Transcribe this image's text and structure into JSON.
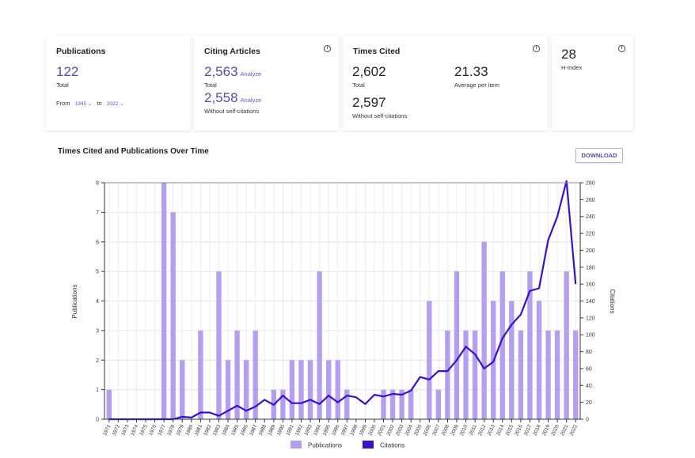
{
  "cards": {
    "publications": {
      "title": "Publications",
      "total": "122",
      "total_label": "Total",
      "from_label": "From",
      "from_value": "1945",
      "to_label": "to",
      "to_value": "2022"
    },
    "citing_articles": {
      "title": "Citing Articles",
      "total": "2,563",
      "total_label": "Total",
      "total_link": "Analyze",
      "without_self": "2,558",
      "without_self_label": "Without self-citations",
      "without_self_link": "Analyze"
    },
    "times_cited": {
      "title": "Times Cited",
      "total": "2,602",
      "total_label": "Total",
      "average": "21.33",
      "average_label": "Average per item",
      "without_self": "2,597",
      "without_self_label": "Without self-citations"
    },
    "h_index": {
      "value": "28",
      "label": "H-Index"
    }
  },
  "section": {
    "title": "Times Cited and Publications Over Time",
    "download_label": "DOWNLOAD"
  },
  "colors": {
    "publications": "#b39ef0",
    "citations": "#3a10c8",
    "accent": "#5b4aa8"
  },
  "chart_data": {
    "type": "bar",
    "title": "Times Cited and Publications Over Time",
    "xlabel": "",
    "ylabel": "Publications",
    "y2label": "Citations",
    "ylim": [
      0,
      8
    ],
    "y2lim": [
      0,
      280
    ],
    "yticks": [
      0,
      1,
      2,
      3,
      4,
      5,
      6,
      7,
      8
    ],
    "y2ticks": [
      0,
      20,
      40,
      60,
      80,
      100,
      120,
      140,
      160,
      180,
      200,
      220,
      240,
      260,
      280
    ],
    "grid": true,
    "legend_position": "bottom-center",
    "categories": [
      "1971",
      "1972",
      "1973",
      "1974",
      "1975",
      "1976",
      "1977",
      "1978",
      "1979",
      "1980",
      "1981",
      "1982",
      "1983",
      "1984",
      "1985",
      "1986",
      "1987",
      "1988",
      "1989",
      "1990",
      "1991",
      "1992",
      "1993",
      "1994",
      "1995",
      "1996",
      "1997",
      "1998",
      "1999",
      "2000",
      "2001",
      "2002",
      "2003",
      "2004",
      "2005",
      "2006",
      "2007",
      "2008",
      "2009",
      "2010",
      "2011",
      "2012",
      "2013",
      "2014",
      "2015",
      "2016",
      "2017",
      "2018",
      "2019",
      "2020",
      "2021",
      "2022"
    ],
    "series": [
      {
        "name": "Publications",
        "type": "bar",
        "axis": "left",
        "values": [
          1,
          0,
          0,
          0,
          0,
          0,
          8,
          7,
          2,
          0,
          3,
          0,
          5,
          2,
          3,
          2,
          3,
          0,
          1,
          1,
          2,
          2,
          2,
          5,
          2,
          2,
          1,
          0,
          0,
          0,
          1,
          1,
          1,
          1,
          0,
          4,
          1,
          3,
          5,
          3,
          3,
          6,
          4,
          5,
          4,
          3,
          5,
          4,
          3,
          3,
          5,
          3
        ]
      },
      {
        "name": "Citations",
        "type": "line",
        "axis": "right",
        "values": [
          0,
          0,
          0,
          0,
          0,
          0,
          0,
          0,
          3,
          2,
          8,
          8,
          4,
          10,
          16,
          10,
          15,
          23,
          17,
          28,
          19,
          19,
          23,
          18,
          28,
          20,
          28,
          26,
          18,
          29,
          27,
          30,
          29,
          34,
          50,
          47,
          57,
          57,
          70,
          86,
          77,
          60,
          68,
          96,
          112,
          124,
          152,
          155,
          212,
          240,
          282,
          160
        ]
      }
    ]
  }
}
